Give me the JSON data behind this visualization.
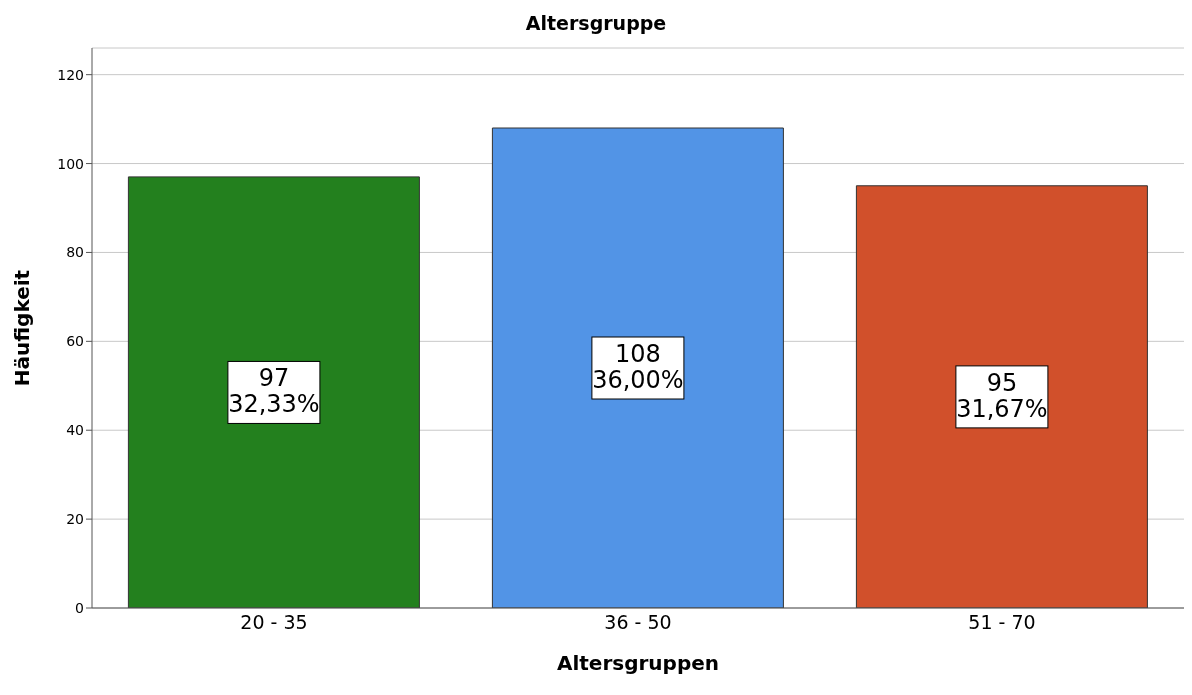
{
  "chart_data": {
    "type": "bar",
    "title": "Altersgruppe",
    "xlabel": "Altersgruppen",
    "ylabel": "Häufigkeit",
    "categories": [
      "20 - 35",
      "36 - 50",
      "51 - 70"
    ],
    "values": [
      97,
      108,
      95
    ],
    "colors": [
      "#23801e",
      "#5294e6",
      "#d1502b"
    ],
    "value_labels": [
      "97\n32,33%",
      "108\n36,00%",
      "95\n31,67%"
    ],
    "ylim": [
      0,
      126
    ],
    "yticks": [
      0,
      20,
      40,
      60,
      80,
      100,
      120
    ],
    "grid": "y"
  }
}
